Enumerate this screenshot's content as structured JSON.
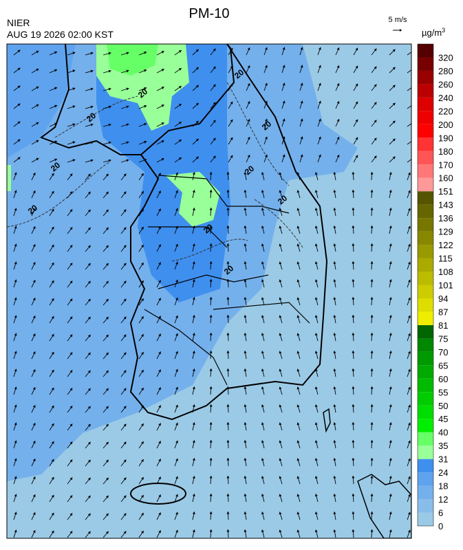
{
  "header": {
    "title": "PM-10",
    "agency": "NIER",
    "timestamp": "AUG 19 2026 02:00 KST",
    "wind_scale": "5 m/s",
    "unit": "µg/m",
    "unit_power": "3"
  },
  "colorbar": {
    "labels": [
      0,
      6,
      12,
      18,
      24,
      31,
      35,
      40,
      45,
      50,
      55,
      60,
      65,
      70,
      75,
      81,
      87,
      94,
      101,
      108,
      115,
      122,
      129,
      136,
      143,
      151,
      160,
      170,
      180,
      190,
      200,
      220,
      240,
      260,
      280,
      320
    ],
    "colors": [
      "#9bcae6",
      "#88bde9",
      "#74b0ec",
      "#5fa3ee",
      "#3f8fee",
      "#99ff99",
      "#66ff66",
      "#00ee00",
      "#00dd00",
      "#00cc00",
      "#00bb00",
      "#00aa00",
      "#009900",
      "#008800",
      "#006600",
      "#eeee00",
      "#dddd00",
      "#cccc00",
      "#bbbb00",
      "#aaaa00",
      "#999900",
      "#888800",
      "#777700",
      "#666600",
      "#555500",
      "#ff9999",
      "#ff7777",
      "#ff5555",
      "#ff3333",
      "#ff0000",
      "#ee0000",
      "#dd0000",
      "#bb0000",
      "#990000",
      "#770000",
      "#550000"
    ]
  },
  "map": {
    "contour_labels": [
      "20",
      "20",
      "20",
      "20",
      "20",
      "20",
      "20",
      "20",
      "20",
      "20"
    ]
  }
}
